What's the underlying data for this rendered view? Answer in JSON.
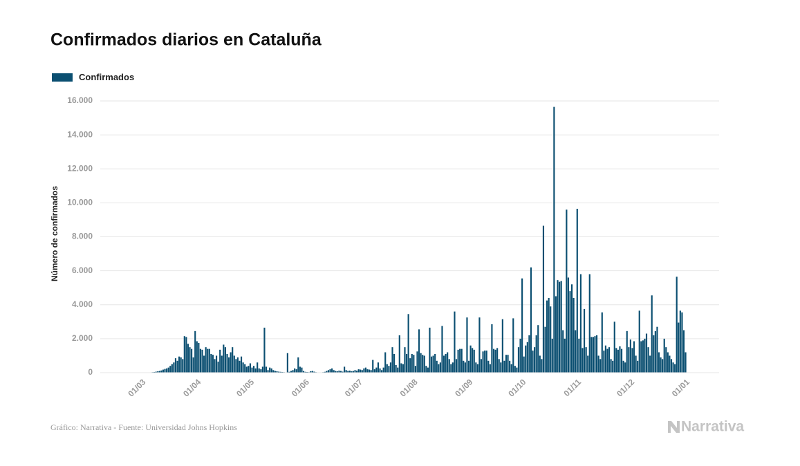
{
  "chart_data": {
    "type": "bar",
    "title": "Confirmados diarios en Cataluña",
    "y_label": "Número de confirmados",
    "source": "Gráfico: Narrativa - Fuente: Universidad Johns Hopkins",
    "logo": "Narrativa",
    "grid": true,
    "ylim": [
      0,
      16000
    ],
    "yticks": [
      0,
      {
        "value": 2000,
        "label": "2.000"
      },
      {
        "value": 4000,
        "label": "4.000"
      },
      {
        "value": 6000,
        "label": "6.000"
      },
      {
        "value": 8000,
        "label": "8.000"
      },
      {
        "value": 10000,
        "label": "10.000"
      },
      {
        "value": 12000,
        "label": "12.000"
      },
      {
        "value": 14000,
        "label": "14.000"
      },
      {
        "value": 16000,
        "label": "16.000"
      }
    ],
    "categories": [
      null,
      null,
      null,
      null,
      null,
      "01/03",
      null,
      null,
      null,
      null,
      null,
      null,
      null,
      null,
      null,
      null,
      null,
      null,
      null,
      null,
      null,
      null,
      null,
      null,
      null,
      null,
      null,
      null,
      null,
      null,
      null,
      null,
      null,
      null,
      null,
      null,
      "01/04",
      null,
      null,
      null,
      null,
      null,
      null,
      null,
      null,
      null,
      null,
      null,
      null,
      null,
      null,
      null,
      null,
      null,
      null,
      null,
      null,
      null,
      null,
      null,
      null,
      null,
      null,
      null,
      null,
      null,
      "01/05",
      null,
      null,
      null,
      null,
      null,
      null,
      null,
      null,
      null,
      null,
      null,
      null,
      null,
      null,
      null,
      null,
      null,
      null,
      null,
      null,
      null,
      null,
      null,
      null,
      null,
      null,
      null,
      null,
      null,
      null,
      "01/06",
      null,
      null,
      null,
      null,
      null,
      null,
      null,
      null,
      null,
      null,
      null,
      null,
      null,
      null,
      null,
      null,
      null,
      null,
      null,
      null,
      null,
      null,
      null,
      null,
      null,
      null,
      null,
      null,
      null,
      "01/07",
      null,
      null,
      null,
      null,
      null,
      null,
      null,
      null,
      null,
      null,
      null,
      null,
      null,
      null,
      null,
      null,
      null,
      null,
      null,
      null,
      null,
      null,
      null,
      null,
      null,
      null,
      null,
      null,
      null,
      null,
      "01/08",
      null,
      null,
      null,
      null,
      null,
      null,
      null,
      null,
      null,
      null,
      null,
      null,
      null,
      null,
      null,
      null,
      null,
      null,
      null,
      null,
      null,
      null,
      null,
      null,
      null,
      null,
      null,
      null,
      null,
      null,
      "01/09",
      null,
      null,
      null,
      null,
      null,
      null,
      null,
      null,
      null,
      null,
      null,
      null,
      null,
      null,
      null,
      null,
      null,
      null,
      null,
      null,
      null,
      null,
      null,
      null,
      null,
      null,
      null,
      null,
      null,
      "01/10",
      null,
      null,
      null,
      null,
      null,
      null,
      null,
      null,
      null,
      null,
      null,
      null,
      null,
      null,
      null,
      null,
      null,
      null,
      null,
      null,
      null,
      null,
      null,
      null,
      null,
      null,
      null,
      null,
      null,
      null,
      "01/11",
      null,
      null,
      null,
      null,
      null,
      null,
      null,
      null,
      null,
      null,
      null,
      null,
      null,
      null,
      null,
      null,
      null,
      null,
      null,
      null,
      null,
      null,
      null,
      null,
      null,
      null,
      null,
      null,
      null,
      "01/12",
      null,
      null,
      null,
      null,
      null,
      null,
      null,
      null,
      null,
      null,
      null,
      null,
      null,
      null,
      null,
      null,
      null,
      null,
      null,
      null,
      null,
      null,
      null,
      null,
      null,
      null,
      null,
      null,
      null,
      null,
      "01/01"
    ],
    "series": [
      {
        "name": "Confirmados",
        "color": "#0b4f71",
        "values": [
          0,
          0,
          1,
          2,
          3,
          5,
          8,
          10,
          12,
          15,
          20,
          30,
          40,
          60,
          80,
          100,
          130,
          180,
          220,
          250,
          300,
          400,
          500,
          600,
          850,
          700,
          950,
          900,
          800,
          2150,
          2100,
          1700,
          1500,
          1400,
          900,
          2450,
          1850,
          1750,
          1400,
          1350,
          1000,
          1500,
          1400,
          1400,
          1100,
          1050,
          800,
          1000,
          650,
          1350,
          1000,
          1650,
          1500,
          1100,
          900,
          1200,
          1500,
          1000,
          800,
          900,
          700,
          950,
          600,
          500,
          350,
          400,
          550,
          300,
          400,
          250,
          600,
          250,
          200,
          350,
          2650,
          350,
          150,
          300,
          250,
          150,
          100,
          80,
          60,
          50,
          40,
          30,
          20,
          1150,
          50,
          100,
          150,
          250,
          200,
          900,
          350,
          300,
          100,
          50,
          40,
          30,
          80,
          100,
          60,
          30,
          20,
          20,
          10,
          30,
          50,
          100,
          150,
          200,
          250,
          150,
          100,
          80,
          120,
          100,
          60,
          350,
          150,
          100,
          120,
          80,
          100,
          150,
          120,
          200,
          180,
          150,
          250,
          300,
          200,
          180,
          150,
          750,
          200,
          300,
          600,
          250,
          150,
          300,
          1200,
          500,
          400,
          600,
          1500,
          1100,
          450,
          300,
          2200,
          550,
          500,
          1500,
          1100,
          3450,
          850,
          1100,
          1050,
          400,
          1250,
          2550,
          1150,
          1050,
          1000,
          400,
          300,
          2650,
          950,
          1000,
          1100,
          700,
          500,
          600,
          2750,
          1000,
          1100,
          1200,
          800,
          500,
          600,
          3600,
          800,
          1350,
          1400,
          1400,
          700,
          600,
          3250,
          700,
          1600,
          1450,
          1350,
          600,
          500,
          3250,
          800,
          1250,
          1300,
          1300,
          700,
          500,
          2850,
          1400,
          1350,
          1450,
          800,
          600,
          3150,
          700,
          1050,
          1050,
          700,
          500,
          3200,
          400,
          300,
          1500,
          2000,
          5550,
          950,
          1600,
          1800,
          2200,
          6200,
          1300,
          1500,
          2200,
          2800,
          1000,
          800,
          8650,
          2700,
          4250,
          4400,
          3900,
          2000,
          15650,
          4500,
          5450,
          5350,
          5400,
          2500,
          2000,
          9600,
          5600,
          4800,
          5200,
          4400,
          2500,
          9650,
          2000,
          5800,
          1450,
          3750,
          1500,
          1000,
          5800,
          2100,
          2100,
          2150,
          2200,
          1000,
          800,
          3550,
          1300,
          1600,
          1400,
          1500,
          800,
          700,
          3000,
          1450,
          1350,
          1550,
          1400,
          700,
          600,
          2450,
          1500,
          1950,
          1450,
          1850,
          1000,
          700,
          3650,
          1850,
          1900,
          2000,
          2300,
          1500,
          1000,
          4550,
          2200,
          2450,
          2700,
          1200,
          900,
          800,
          2000,
          1500,
          1200,
          1000,
          800,
          600,
          500,
          5650,
          2950,
          3650,
          3550,
          2500,
          1200
        ]
      }
    ]
  }
}
